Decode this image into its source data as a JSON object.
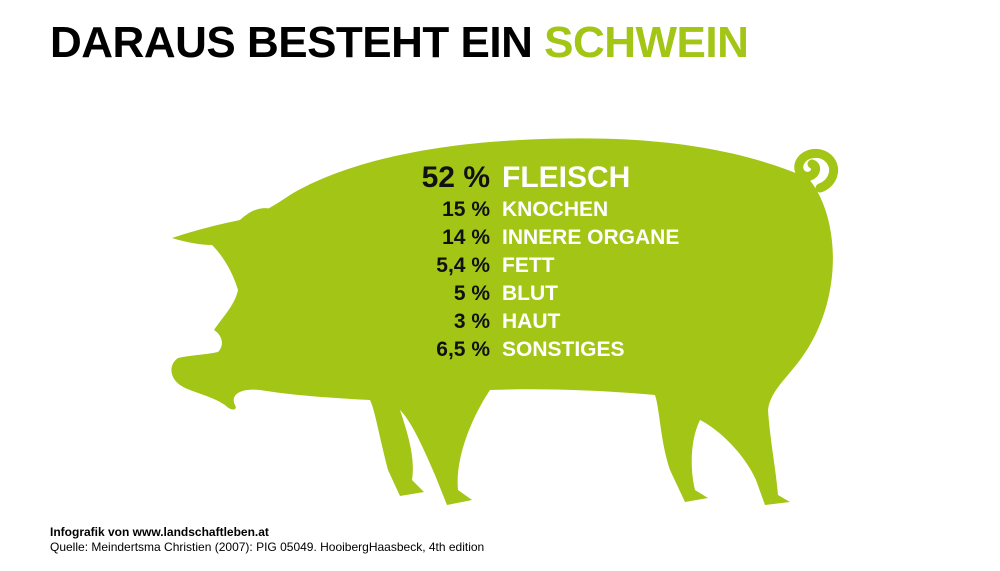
{
  "title": {
    "prefix": "DARAUS BESTEHT EIN",
    "highlight": "SCHWEIN"
  },
  "colors": {
    "accent": "#a2c516",
    "text": "#000000",
    "label": "#ffffff"
  },
  "composition": [
    {
      "percent": "52 %",
      "label": "FLEISCH"
    },
    {
      "percent": "15 %",
      "label": "KNOCHEN"
    },
    {
      "percent": "14 %",
      "label": "INNERE ORGANE"
    },
    {
      "percent": "5,4 %",
      "label": "FETT"
    },
    {
      "percent": "5 %",
      "label": "BLUT"
    },
    {
      "percent": "3 %",
      "label": "HAUT"
    },
    {
      "percent": "6,5 %",
      "label": "SONSTIGES"
    }
  ],
  "footer": {
    "credit": "Infografik von www.landschaftleben.at",
    "source": "Quelle: Meindertsma Christien (2007): PIG 05049. HooibergHaasbeck, 4th edition"
  }
}
